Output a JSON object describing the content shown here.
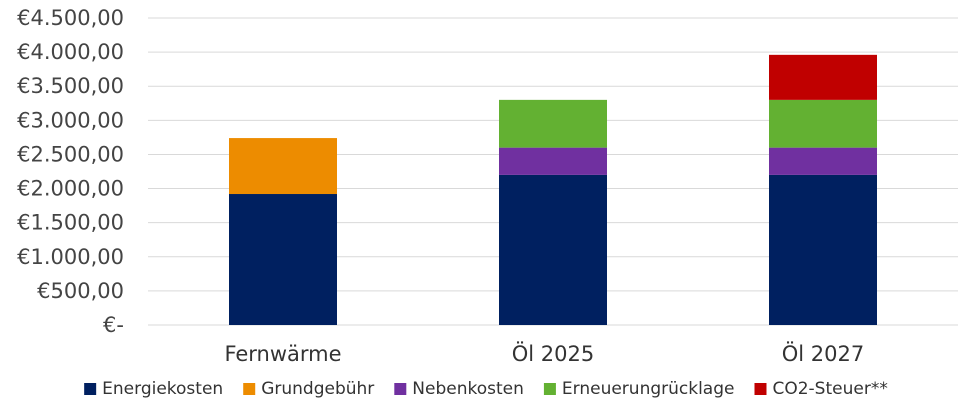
{
  "chart_data": {
    "type": "bar",
    "stacked": true,
    "categories": [
      "Fernwärme",
      "Öl 2025",
      "Öl 2027"
    ],
    "series": [
      {
        "name": "Energiekosten",
        "color": "#002060",
        "values": [
          1920,
          2200,
          2200
        ]
      },
      {
        "name": "Grundgebühr",
        "color": "#ED8C00",
        "values": [
          820,
          0,
          0
        ]
      },
      {
        "name": "Nebenkosten",
        "color": "#7030A0",
        "values": [
          0,
          400,
          400
        ]
      },
      {
        "name": "Erneuerungrücklage",
        "color": "#63B132",
        "values": [
          0,
          700,
          700
        ]
      },
      {
        "name": "CO2-Steuer**",
        "color": "#C00000",
        "values": [
          0,
          0,
          660
        ]
      }
    ],
    "y_ticks": [
      0,
      500,
      1000,
      1500,
      2000,
      2500,
      3000,
      3500,
      4000,
      4500
    ],
    "y_tick_labels": [
      "€-",
      "€500,00",
      "€1.000,00",
      "€1.500,00",
      "€2.000,00",
      "€2.500,00",
      "€3.000,00",
      "€3.500,00",
      "€4.000,00",
      "€4.500,00"
    ],
    "ylim": [
      0,
      4500
    ],
    "grid": true,
    "legend": "bottom"
  }
}
